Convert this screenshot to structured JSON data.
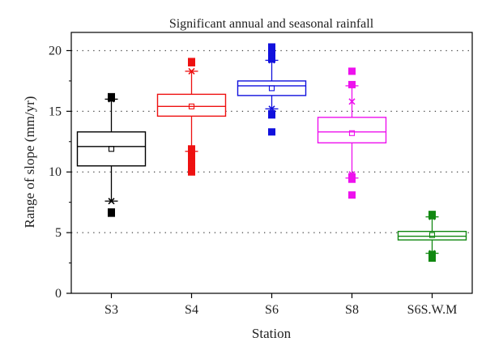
{
  "chart_data": {
    "type": "box",
    "title": "Significant annual and seasonal rainfall",
    "xlabel": "Station",
    "ylabel": "Range of slope (mm/yr)",
    "ylim": [
      0,
      21.5
    ],
    "yticks": [
      0,
      5,
      10,
      15,
      20
    ],
    "grid": "horizontal dotted",
    "categories": [
      "S3",
      "S4",
      "S6",
      "S8",
      "S6S.W.M"
    ],
    "colors": [
      "#000000",
      "#ee1111",
      "#1111dd",
      "#ee11ee",
      "#118811"
    ],
    "series": [
      {
        "q1": 10.5,
        "median": 12.1,
        "q3": 13.3,
        "mean": 11.9,
        "whisker_low": 7.6,
        "whisker_high": 16.0,
        "outliers": [
          6.6,
          6.7,
          16.1,
          16.2
        ],
        "pct_low": 7.6,
        "pct_high": 16.0
      },
      {
        "q1": 14.6,
        "median": 15.4,
        "q3": 16.4,
        "mean": 15.4,
        "whisker_low": 11.7,
        "whisker_high": 18.3,
        "outliers": [
          10.0,
          10.2,
          10.4,
          10.6,
          10.8,
          11.0,
          11.2,
          11.4,
          11.6,
          11.8,
          11.9,
          19.0,
          19.1
        ],
        "pct_low": 11.8,
        "pct_high": 18.3
      },
      {
        "q1": 16.3,
        "median": 17.1,
        "q3": 17.5,
        "mean": 16.9,
        "whisker_low": 15.2,
        "whisker_high": 19.2,
        "outliers": [
          13.3,
          14.7,
          14.8,
          19.3,
          19.6,
          19.9,
          20.1,
          20.3
        ],
        "pct_low": 15.2,
        "pct_high": 19.2
      },
      {
        "q1": 12.4,
        "median": 13.3,
        "q3": 14.5,
        "mean": 13.2,
        "whisker_low": 9.5,
        "whisker_high": 17.1,
        "outliers": [
          8.1,
          9.4,
          9.6,
          17.2,
          18.3
        ],
        "pct_low": 9.8,
        "pct_high": 15.8
      },
      {
        "q1": 4.4,
        "median": 4.7,
        "q3": 5.1,
        "mean": 4.8,
        "whisker_low": 3.3,
        "whisker_high": 6.3,
        "outliers": [
          2.9,
          3.1,
          3.2,
          6.4,
          6.5
        ],
        "pct_low": 3.3,
        "pct_high": 6.3
      }
    ]
  }
}
